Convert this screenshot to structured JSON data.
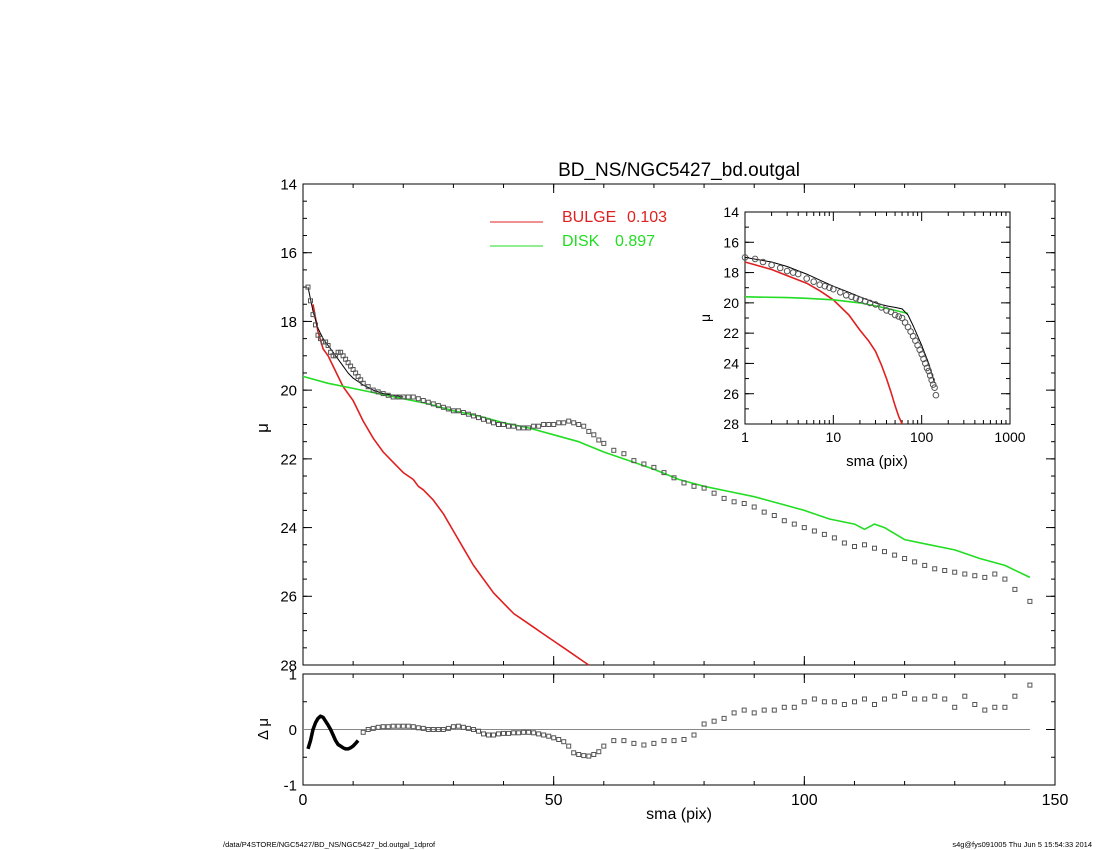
{
  "title": "BD_NS/NGC5427_bd.outgal",
  "legend": [
    {
      "name": "BULGE",
      "value": "0.103",
      "color": "#e02020"
    },
    {
      "name": "DISK",
      "value": "0.897",
      "color": "#22dd22"
    }
  ],
  "footer": {
    "left": "/data/P4STORE/NGC5427/BD_NS/NGC5427_bd.outgal_1dprof",
    "right": "s4g@fys091005  Thu Jun  5 15:54:33 2014"
  },
  "chart_data": [
    {
      "id": "main",
      "type": "line",
      "title": "BD_NS/NGC5427_bd.outgal",
      "xlabel": "",
      "ylabel": "μ",
      "xlim": [
        0,
        150
      ],
      "ylim": [
        28,
        14
      ],
      "y_inverted": true,
      "yticks": [
        14,
        16,
        18,
        20,
        22,
        24,
        26,
        28
      ],
      "series": [
        {
          "name": "BULGE",
          "color": "#e02020",
          "x": [
            2,
            3,
            4,
            5,
            6,
            8,
            10,
            12,
            14,
            16,
            18,
            20,
            22,
            23,
            24,
            26,
            28,
            30,
            32,
            34,
            36,
            38,
            40,
            42,
            44,
            46,
            48,
            50,
            52,
            54,
            56,
            57
          ],
          "y": [
            17.5,
            18.3,
            18.8,
            19.0,
            19.3,
            19.9,
            20.3,
            20.9,
            21.4,
            21.8,
            22.1,
            22.4,
            22.6,
            22.8,
            22.9,
            23.2,
            23.6,
            24.1,
            24.6,
            25.1,
            25.5,
            25.9,
            26.2,
            26.5,
            26.7,
            26.9,
            27.1,
            27.3,
            27.5,
            27.7,
            27.9,
            28.0
          ]
        },
        {
          "name": "DISK",
          "color": "#22dd22",
          "x": [
            0,
            5,
            10,
            15,
            20,
            25,
            30,
            35,
            40,
            45,
            50,
            55,
            60,
            65,
            70,
            75,
            80,
            85,
            90,
            95,
            100,
            105,
            110,
            112,
            114,
            116,
            120,
            125,
            130,
            135,
            140,
            145
          ],
          "y": [
            19.6,
            19.8,
            19.95,
            20.1,
            20.25,
            20.4,
            20.6,
            20.75,
            20.95,
            21.1,
            21.3,
            21.5,
            21.8,
            22.05,
            22.3,
            22.6,
            22.8,
            22.95,
            23.1,
            23.3,
            23.5,
            23.75,
            23.9,
            24.05,
            23.9,
            24.0,
            24.35,
            24.5,
            24.65,
            24.9,
            25.1,
            25.45
          ]
        },
        {
          "name": "",
          "color": "#000000",
          "x": [
            1,
            2,
            3,
            4,
            5,
            6,
            7,
            8,
            9,
            10,
            12,
            14,
            16,
            18,
            20
          ],
          "y": [
            17.0,
            17.7,
            18.2,
            18.5,
            18.7,
            18.9,
            19.1,
            19.3,
            19.5,
            19.65,
            19.85,
            20.0,
            20.1,
            20.15,
            20.2
          ]
        },
        {
          "name": "",
          "color": "#555555",
          "marker": "square",
          "x": [
            1,
            1.5,
            2,
            2.5,
            3,
            3.5,
            4,
            4.5,
            5,
            5.5,
            6,
            6.5,
            7,
            7.5,
            8,
            8.5,
            9,
            9.5,
            10,
            10.5,
            11,
            11.5,
            12,
            13,
            14,
            15,
            16,
            17,
            18,
            19,
            20,
            21,
            22,
            23,
            24,
            25,
            26,
            27,
            28,
            29,
            30,
            31,
            32,
            33,
            34,
            35,
            36,
            37,
            38,
            39,
            40,
            41,
            42,
            43,
            44,
            45,
            46,
            47,
            48,
            49,
            50,
            51,
            52,
            53,
            54,
            55,
            56,
            57,
            58,
            59,
            60,
            62,
            64,
            66,
            68,
            70,
            72,
            74,
            76,
            78,
            80,
            82,
            84,
            86,
            88,
            90,
            92,
            94,
            96,
            98,
            100,
            102,
            104,
            106,
            108,
            110,
            112,
            114,
            116,
            118,
            120,
            122,
            124,
            126,
            128,
            130,
            132,
            134,
            136,
            138,
            140,
            142,
            145
          ],
          "y": [
            17.0,
            17.4,
            17.8,
            18.1,
            18.4,
            18.5,
            18.6,
            18.6,
            18.7,
            18.9,
            19.0,
            19.0,
            18.9,
            18.9,
            19.0,
            19.1,
            19.2,
            19.3,
            19.4,
            19.5,
            19.6,
            19.7,
            19.8,
            19.9,
            20.0,
            20.05,
            20.1,
            20.15,
            20.2,
            20.2,
            20.2,
            20.2,
            20.2,
            20.25,
            20.3,
            20.35,
            20.4,
            20.45,
            20.5,
            20.55,
            20.6,
            20.6,
            20.65,
            20.7,
            20.75,
            20.8,
            20.85,
            20.9,
            20.95,
            21.0,
            21.0,
            21.05,
            21.05,
            21.1,
            21.1,
            21.1,
            21.05,
            21.05,
            21.0,
            21.0,
            21.0,
            20.95,
            20.95,
            20.9,
            20.95,
            21.0,
            21.05,
            21.2,
            21.3,
            21.45,
            21.55,
            21.75,
            21.85,
            22.05,
            22.15,
            22.25,
            22.4,
            22.55,
            22.7,
            22.8,
            22.85,
            23.0,
            23.15,
            23.25,
            23.3,
            23.4,
            23.55,
            23.65,
            23.8,
            23.9,
            24.0,
            24.1,
            24.2,
            24.3,
            24.45,
            24.55,
            24.5,
            24.6,
            24.7,
            24.8,
            24.9,
            25.0,
            25.1,
            25.2,
            25.25,
            25.3,
            25.35,
            25.4,
            25.45,
            25.35,
            25.5,
            25.8,
            26.15
          ]
        }
      ]
    },
    {
      "id": "residual",
      "type": "scatter",
      "xlabel": "sma (pix)",
      "ylabel": "Δ μ",
      "xlim": [
        0,
        150
      ],
      "ylim": [
        -1,
        1
      ],
      "xticks": [
        0,
        50,
        100,
        150
      ],
      "yticks": [
        -1,
        0,
        1
      ],
      "series": [
        {
          "name": "",
          "color": "#000000",
          "marker": "line",
          "x": [
            1,
            1.5,
            2,
            2.5,
            3,
            3.5,
            4,
            4.5,
            5,
            5.5,
            6,
            6.5,
            7,
            7.5,
            8,
            8.5,
            9,
            9.5,
            10,
            10.5,
            11
          ],
          "y": [
            -0.35,
            -0.2,
            0.0,
            0.12,
            0.2,
            0.24,
            0.22,
            0.15,
            0.08,
            0.0,
            -0.1,
            -0.2,
            -0.27,
            -0.3,
            -0.33,
            -0.35,
            -0.35,
            -0.33,
            -0.3,
            -0.25,
            -0.2
          ]
        },
        {
          "name": "",
          "color": "#555555",
          "marker": "square",
          "x": [
            12,
            13,
            14,
            15,
            16,
            17,
            18,
            19,
            20,
            21,
            22,
            23,
            24,
            25,
            26,
            27,
            28,
            29,
            30,
            31,
            32,
            33,
            34,
            35,
            36,
            37,
            38,
            39,
            40,
            41,
            42,
            43,
            44,
            45,
            46,
            47,
            48,
            49,
            50,
            51,
            52,
            53,
            54,
            55,
            56,
            57,
            58,
            59,
            60,
            62,
            64,
            66,
            68,
            70,
            72,
            74,
            76,
            78,
            80,
            82,
            84,
            86,
            88,
            90,
            92,
            94,
            96,
            98,
            100,
            102,
            104,
            106,
            108,
            110,
            112,
            114,
            116,
            118,
            120,
            122,
            124,
            126,
            128,
            130,
            132,
            134,
            136,
            138,
            140,
            142,
            145
          ],
          "y": [
            -0.05,
            0.0,
            0.02,
            0.04,
            0.05,
            0.05,
            0.06,
            0.06,
            0.06,
            0.06,
            0.05,
            0.03,
            0.02,
            0.0,
            0.0,
            0.0,
            0.0,
            0.02,
            0.05,
            0.06,
            0.04,
            0.02,
            0.0,
            -0.03,
            -0.08,
            -0.1,
            -0.1,
            -0.08,
            -0.07,
            -0.07,
            -0.06,
            -0.06,
            -0.05,
            -0.05,
            -0.06,
            -0.08,
            -0.1,
            -0.12,
            -0.15,
            -0.18,
            -0.22,
            -0.3,
            -0.42,
            -0.45,
            -0.47,
            -0.48,
            -0.45,
            -0.4,
            -0.3,
            -0.2,
            -0.2,
            -0.25,
            -0.28,
            -0.25,
            -0.2,
            -0.2,
            -0.18,
            -0.1,
            0.1,
            0.15,
            0.2,
            0.3,
            0.35,
            0.3,
            0.35,
            0.35,
            0.4,
            0.4,
            0.5,
            0.55,
            0.5,
            0.5,
            0.45,
            0.5,
            0.55,
            0.45,
            0.55,
            0.6,
            0.65,
            0.55,
            0.55,
            0.6,
            0.55,
            0.4,
            0.6,
            0.45,
            0.35,
            0.4,
            0.4,
            0.6,
            0.8
          ]
        }
      ]
    },
    {
      "id": "inset",
      "type": "line",
      "xlabel": "sma (pix)",
      "ylabel": "μ",
      "x_log": true,
      "xlim": [
        1,
        1000
      ],
      "ylim": [
        28,
        14
      ],
      "y_inverted": true,
      "xticks": [
        1,
        10,
        100,
        1000
      ],
      "yticks": [
        14,
        16,
        18,
        20,
        22,
        24,
        26,
        28
      ],
      "series": [
        {
          "name": "BULGE",
          "color": "#e02020",
          "x": [
            1,
            2,
            3,
            5,
            7,
            10,
            15,
            20,
            25,
            30,
            35,
            40,
            45,
            50,
            55,
            60
          ],
          "y": [
            17.3,
            17.8,
            18.2,
            18.7,
            19.2,
            19.8,
            20.8,
            21.8,
            22.5,
            23.2,
            24.1,
            25.0,
            25.9,
            26.8,
            27.5,
            28.0
          ]
        },
        {
          "name": "DISK",
          "color": "#22dd22",
          "x": [
            1,
            3,
            5,
            10,
            20,
            30,
            50,
            70
          ],
          "y": [
            19.6,
            19.65,
            19.7,
            19.8,
            20.0,
            20.2,
            20.5,
            20.7
          ]
        },
        {
          "name": "",
          "color": "#000000",
          "x": [
            1,
            2,
            3,
            5,
            7,
            10,
            15,
            20,
            30,
            40,
            50,
            60,
            70,
            80,
            100,
            120,
            140
          ],
          "y": [
            17.0,
            17.3,
            17.6,
            18.1,
            18.5,
            18.9,
            19.3,
            19.6,
            20.0,
            20.2,
            20.3,
            20.4,
            20.8,
            21.5,
            22.8,
            24.0,
            25.3
          ]
        },
        {
          "name": "",
          "color": "#555555",
          "marker": "circle",
          "x": [
            1,
            1.3,
            1.6,
            2,
            2.5,
            3,
            3.5,
            4,
            5,
            6,
            7,
            8,
            9,
            10,
            12,
            14,
            16,
            18,
            20,
            23,
            26,
            30,
            35,
            40,
            45,
            50,
            55,
            60,
            65,
            70,
            75,
            80,
            85,
            90,
            95,
            100,
            105,
            110,
            115,
            120,
            125,
            130,
            135,
            140,
            145
          ],
          "y": [
            17.0,
            17.1,
            17.3,
            17.5,
            17.7,
            17.9,
            18.0,
            18.1,
            18.4,
            18.6,
            18.8,
            18.9,
            19.0,
            19.1,
            19.3,
            19.5,
            19.6,
            19.7,
            19.8,
            19.9,
            20.0,
            20.1,
            20.3,
            20.5,
            20.6,
            20.8,
            20.9,
            21.0,
            21.3,
            21.6,
            21.9,
            22.2,
            22.5,
            22.8,
            23.1,
            23.4,
            23.7,
            24.0,
            24.3,
            24.5,
            24.8,
            25.1,
            25.4,
            25.6,
            26.1
          ]
        }
      ]
    }
  ]
}
